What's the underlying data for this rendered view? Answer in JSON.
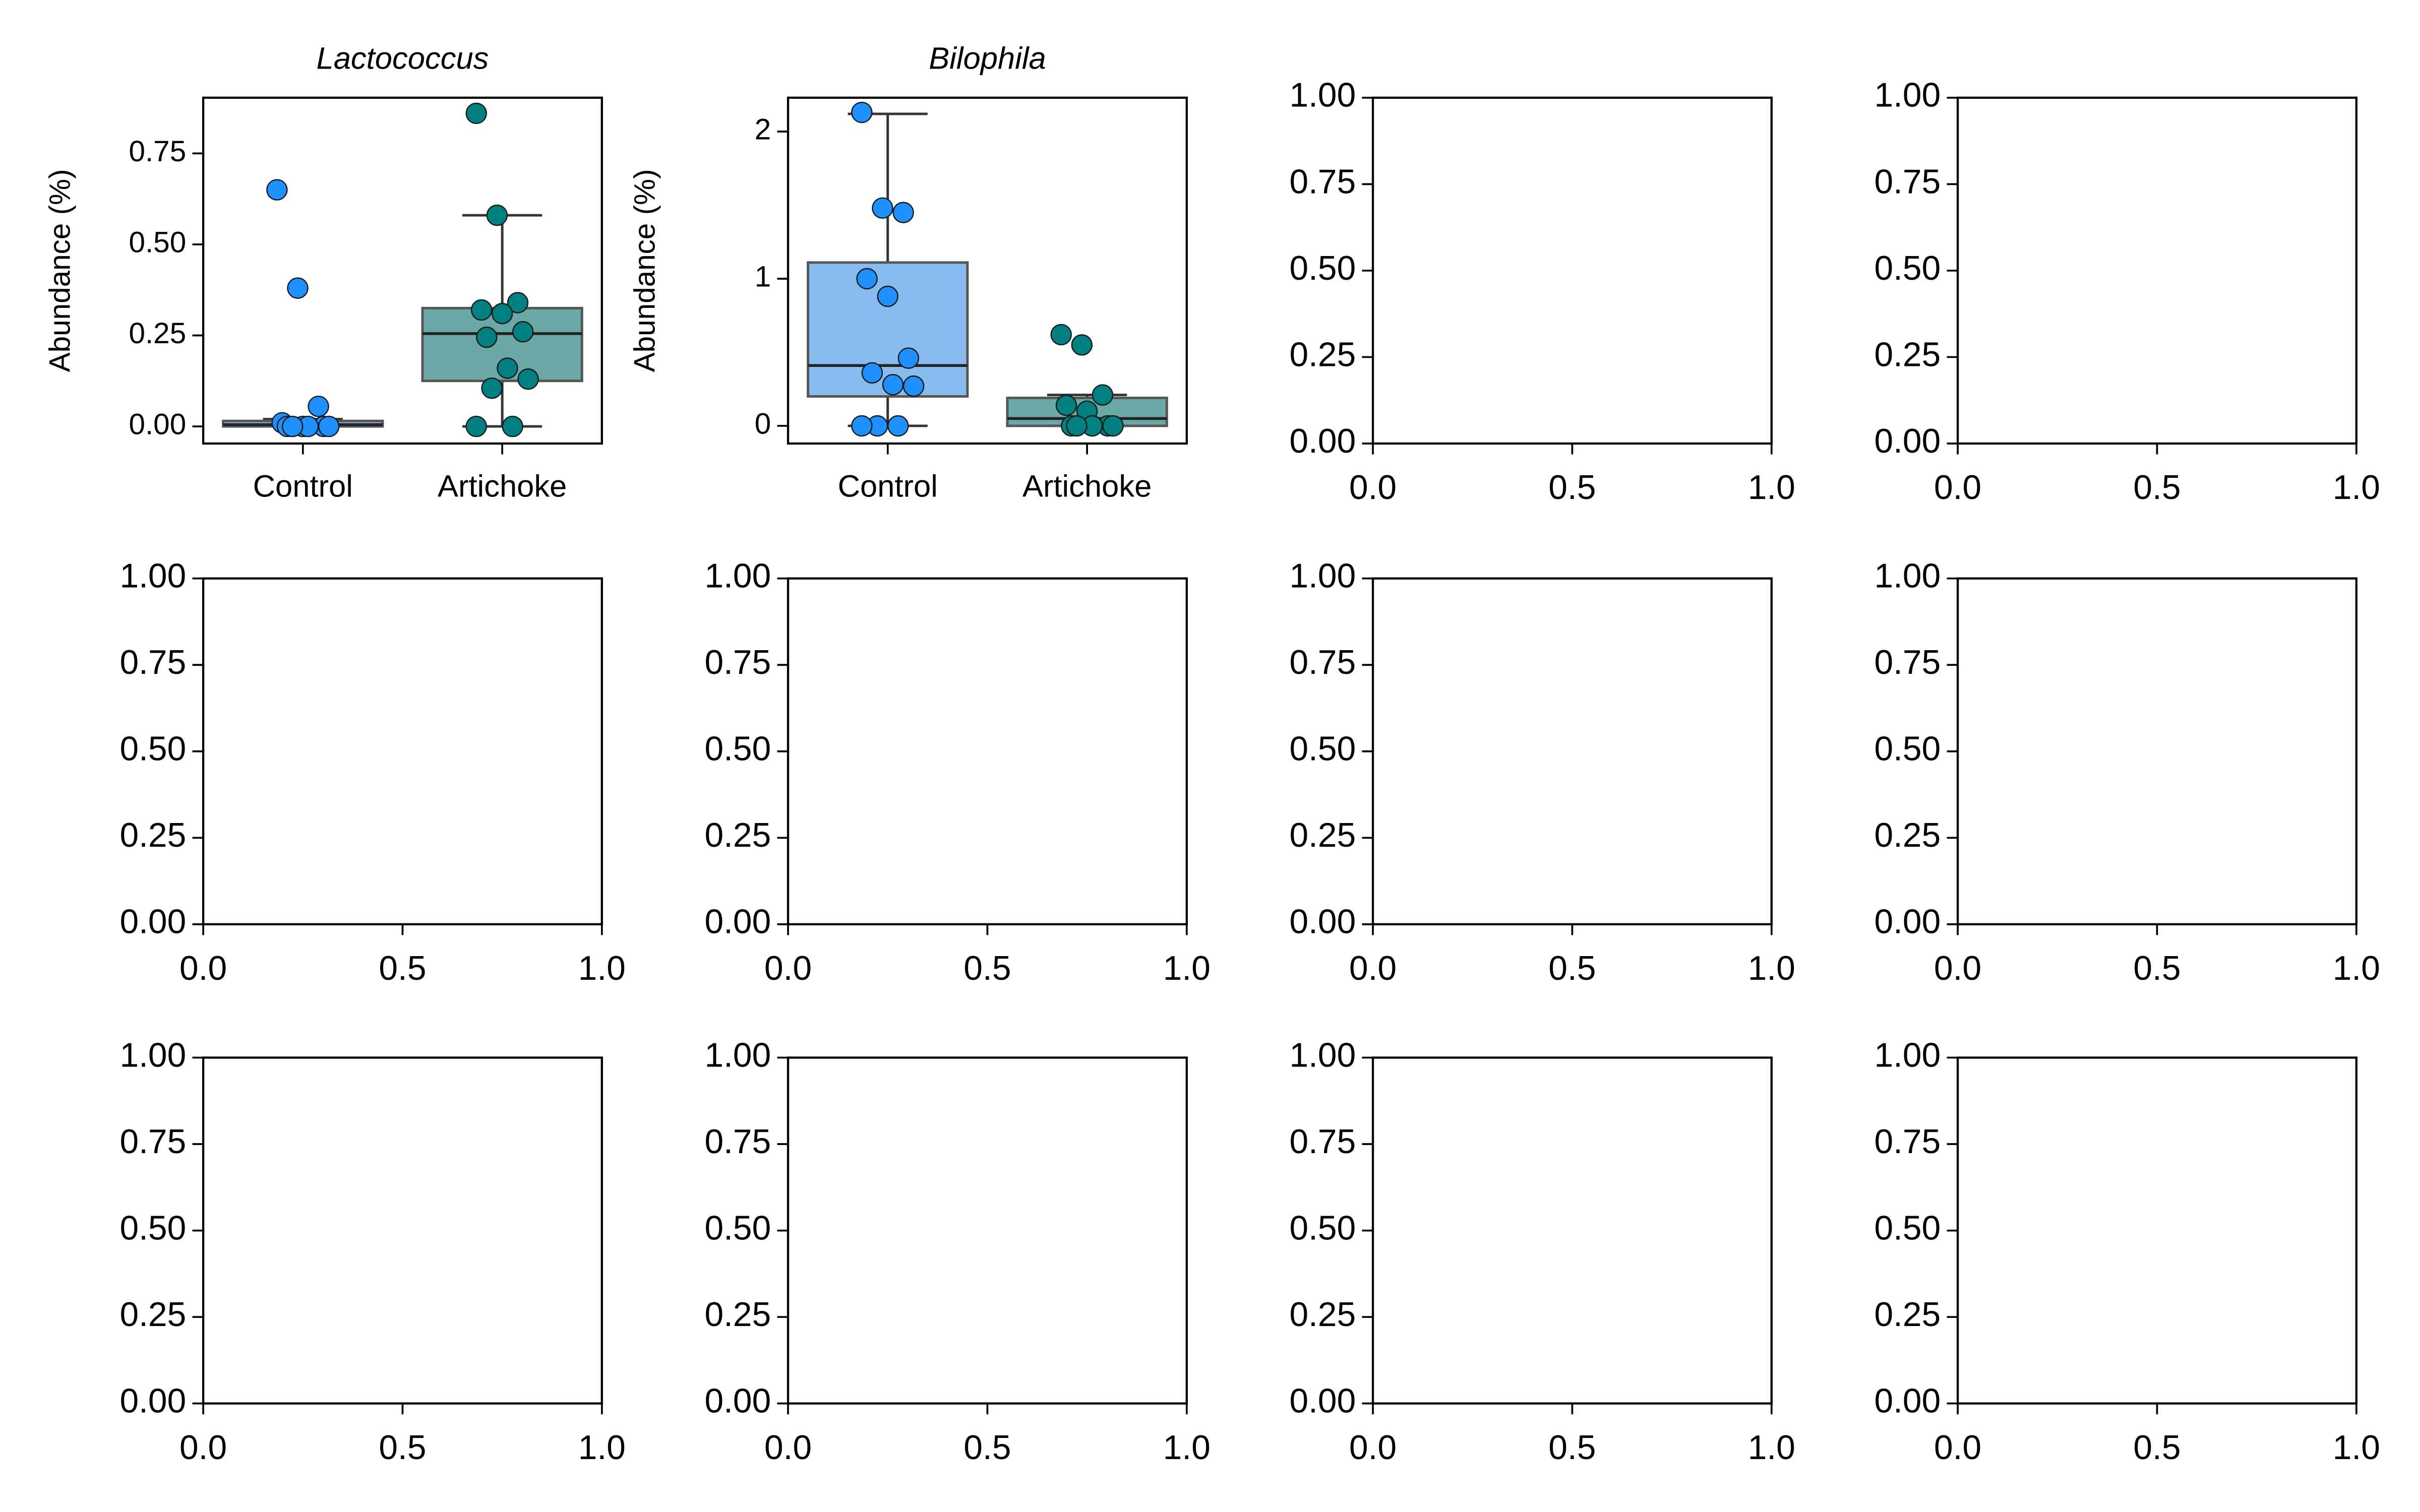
{
  "chart_data": [
    {
      "type": "box",
      "title": "Lactococcus",
      "ylabel": "Abundance (%)",
      "categories": [
        "Control",
        "Artichoke"
      ],
      "ylim": [
        -0.047,
        0.903
      ],
      "yticks": [
        {
          "value": 0,
          "label": "0.00"
        },
        {
          "value": 0.25,
          "label": "0.25"
        },
        {
          "value": 0.5,
          "label": "0.50"
        },
        {
          "value": 0.75,
          "label": "0.75"
        }
      ],
      "boxes": [
        {
          "box_color": "#88bbee",
          "point_color": "#1e90ff",
          "q1": 0,
          "median": 0.005,
          "q3": 0.015,
          "whislo": 0,
          "whishi": 0.02,
          "points": [
            0.65,
            0.38,
            0.055,
            0.01,
            0,
            0,
            0,
            0,
            0,
            0
          ]
        },
        {
          "box_color": "#6aa9a6",
          "point_color": "#008080",
          "q1": 0.125,
          "median": 0.255,
          "q3": 0.325,
          "whislo": 0,
          "whishi": 0.58,
          "points": [
            0.86,
            0.58,
            0.34,
            0.32,
            0.31,
            0.26,
            0.245,
            0.16,
            0.13,
            0.105,
            0,
            0
          ]
        }
      ]
    },
    {
      "type": "box",
      "title": "Bilophila",
      "ylabel": "Abundance (%)",
      "categories": [
        "Control",
        "Artichoke"
      ],
      "ylim": [
        -0.12,
        2.23
      ],
      "yticks": [
        0,
        1,
        2
      ],
      "boxes": [
        {
          "box_color": "#88bbee",
          "point_color": "#1e90ff",
          "q1": 0.2,
          "median": 0.41,
          "q3": 1.11,
          "whislo": 0,
          "whishi": 2.12,
          "points": [
            2.13,
            1.48,
            1.45,
            1.0,
            0.88,
            0.46,
            0.36,
            0.28,
            0.27,
            0,
            0,
            0
          ]
        },
        {
          "box_color": "#6aa9a6",
          "point_color": "#008080",
          "q1": 0,
          "median": 0.05,
          "q3": 0.19,
          "whislo": 0,
          "whishi": 0.21,
          "points": [
            0.62,
            0.55,
            0.21,
            0.14,
            0.1,
            0,
            0,
            0,
            0,
            0
          ]
        }
      ]
    },
    {
      "type": "empty",
      "xlim": [
        0,
        1
      ],
      "ylim": [
        0,
        1
      ],
      "xticks": [
        {
          "value": 0,
          "label": "0.0"
        },
        {
          "value": 0.5,
          "label": "0.5"
        },
        {
          "value": 1,
          "label": "1.0"
        }
      ],
      "yticks": [
        {
          "value": 0,
          "label": "0.00"
        },
        {
          "value": 0.25,
          "label": "0.25"
        },
        {
          "value": 0.5,
          "label": "0.50"
        },
        {
          "value": 0.75,
          "label": "0.75"
        },
        {
          "value": 1,
          "label": "1.00"
        }
      ]
    },
    {
      "type": "empty",
      "xlim": [
        0,
        1
      ],
      "ylim": [
        0,
        1
      ],
      "xticks": [
        {
          "value": 0,
          "label": "0.0"
        },
        {
          "value": 0.5,
          "label": "0.5"
        },
        {
          "value": 1,
          "label": "1.0"
        }
      ],
      "yticks": [
        {
          "value": 0,
          "label": "0.00"
        },
        {
          "value": 0.25,
          "label": "0.25"
        },
        {
          "value": 0.5,
          "label": "0.50"
        },
        {
          "value": 0.75,
          "label": "0.75"
        },
        {
          "value": 1,
          "label": "1.00"
        }
      ]
    },
    {
      "type": "empty",
      "xlim": [
        0,
        1
      ],
      "ylim": [
        0,
        1
      ],
      "xticks": [
        {
          "value": 0,
          "label": "0.0"
        },
        {
          "value": 0.5,
          "label": "0.5"
        },
        {
          "value": 1,
          "label": "1.0"
        }
      ],
      "yticks": [
        {
          "value": 0,
          "label": "0.00"
        },
        {
          "value": 0.25,
          "label": "0.25"
        },
        {
          "value": 0.5,
          "label": "0.50"
        },
        {
          "value": 0.75,
          "label": "0.75"
        },
        {
          "value": 1,
          "label": "1.00"
        }
      ]
    },
    {
      "type": "empty",
      "xlim": [
        0,
        1
      ],
      "ylim": [
        0,
        1
      ],
      "xticks": [
        {
          "value": 0,
          "label": "0.0"
        },
        {
          "value": 0.5,
          "label": "0.5"
        },
        {
          "value": 1,
          "label": "1.0"
        }
      ],
      "yticks": [
        {
          "value": 0,
          "label": "0.00"
        },
        {
          "value": 0.25,
          "label": "0.25"
        },
        {
          "value": 0.5,
          "label": "0.50"
        },
        {
          "value": 0.75,
          "label": "0.75"
        },
        {
          "value": 1,
          "label": "1.00"
        }
      ]
    },
    {
      "type": "empty",
      "xlim": [
        0,
        1
      ],
      "ylim": [
        0,
        1
      ],
      "xticks": [
        {
          "value": 0,
          "label": "0.0"
        },
        {
          "value": 0.5,
          "label": "0.5"
        },
        {
          "value": 1,
          "label": "1.0"
        }
      ],
      "yticks": [
        {
          "value": 0,
          "label": "0.00"
        },
        {
          "value": 0.25,
          "label": "0.25"
        },
        {
          "value": 0.5,
          "label": "0.50"
        },
        {
          "value": 0.75,
          "label": "0.75"
        },
        {
          "value": 1,
          "label": "1.00"
        }
      ]
    },
    {
      "type": "empty",
      "xlim": [
        0,
        1
      ],
      "ylim": [
        0,
        1
      ],
      "xticks": [
        {
          "value": 0,
          "label": "0.0"
        },
        {
          "value": 0.5,
          "label": "0.5"
        },
        {
          "value": 1,
          "label": "1.0"
        }
      ],
      "yticks": [
        {
          "value": 0,
          "label": "0.00"
        },
        {
          "value": 0.25,
          "label": "0.25"
        },
        {
          "value": 0.5,
          "label": "0.50"
        },
        {
          "value": 0.75,
          "label": "0.75"
        },
        {
          "value": 1,
          "label": "1.00"
        }
      ]
    },
    {
      "type": "empty",
      "xlim": [
        0,
        1
      ],
      "ylim": [
        0,
        1
      ],
      "xticks": [
        {
          "value": 0,
          "label": "0.0"
        },
        {
          "value": 0.5,
          "label": "0.5"
        },
        {
          "value": 1,
          "label": "1.0"
        }
      ],
      "yticks": [
        {
          "value": 0,
          "label": "0.00"
        },
        {
          "value": 0.25,
          "label": "0.25"
        },
        {
          "value": 0.5,
          "label": "0.50"
        },
        {
          "value": 0.75,
          "label": "0.75"
        },
        {
          "value": 1,
          "label": "1.00"
        }
      ]
    },
    {
      "type": "empty",
      "xlim": [
        0,
        1
      ],
      "ylim": [
        0,
        1
      ],
      "xticks": [
        {
          "value": 0,
          "label": "0.0"
        },
        {
          "value": 0.5,
          "label": "0.5"
        },
        {
          "value": 1,
          "label": "1.0"
        }
      ],
      "yticks": [
        {
          "value": 0,
          "label": "0.00"
        },
        {
          "value": 0.25,
          "label": "0.25"
        },
        {
          "value": 0.5,
          "label": "0.50"
        },
        {
          "value": 0.75,
          "label": "0.75"
        },
        {
          "value": 1,
          "label": "1.00"
        }
      ]
    },
    {
      "type": "empty",
      "xlim": [
        0,
        1
      ],
      "ylim": [
        0,
        1
      ],
      "xticks": [
        {
          "value": 0,
          "label": "0.0"
        },
        {
          "value": 0.5,
          "label": "0.5"
        },
        {
          "value": 1,
          "label": "1.0"
        }
      ],
      "yticks": [
        {
          "value": 0,
          "label": "0.00"
        },
        {
          "value": 0.25,
          "label": "0.25"
        },
        {
          "value": 0.5,
          "label": "0.50"
        },
        {
          "value": 0.75,
          "label": "0.75"
        },
        {
          "value": 1,
          "label": "1.00"
        }
      ]
    },
    {
      "type": "empty",
      "xlim": [
        0,
        1
      ],
      "ylim": [
        0,
        1
      ],
      "xticks": [
        {
          "value": 0,
          "label": "0.0"
        },
        {
          "value": 0.5,
          "label": "0.5"
        },
        {
          "value": 1,
          "label": "1.0"
        }
      ],
      "yticks": [
        {
          "value": 0,
          "label": "0.00"
        },
        {
          "value": 0.25,
          "label": "0.25"
        },
        {
          "value": 0.5,
          "label": "0.50"
        },
        {
          "value": 0.75,
          "label": "0.75"
        },
        {
          "value": 1,
          "label": "1.00"
        }
      ]
    }
  ]
}
